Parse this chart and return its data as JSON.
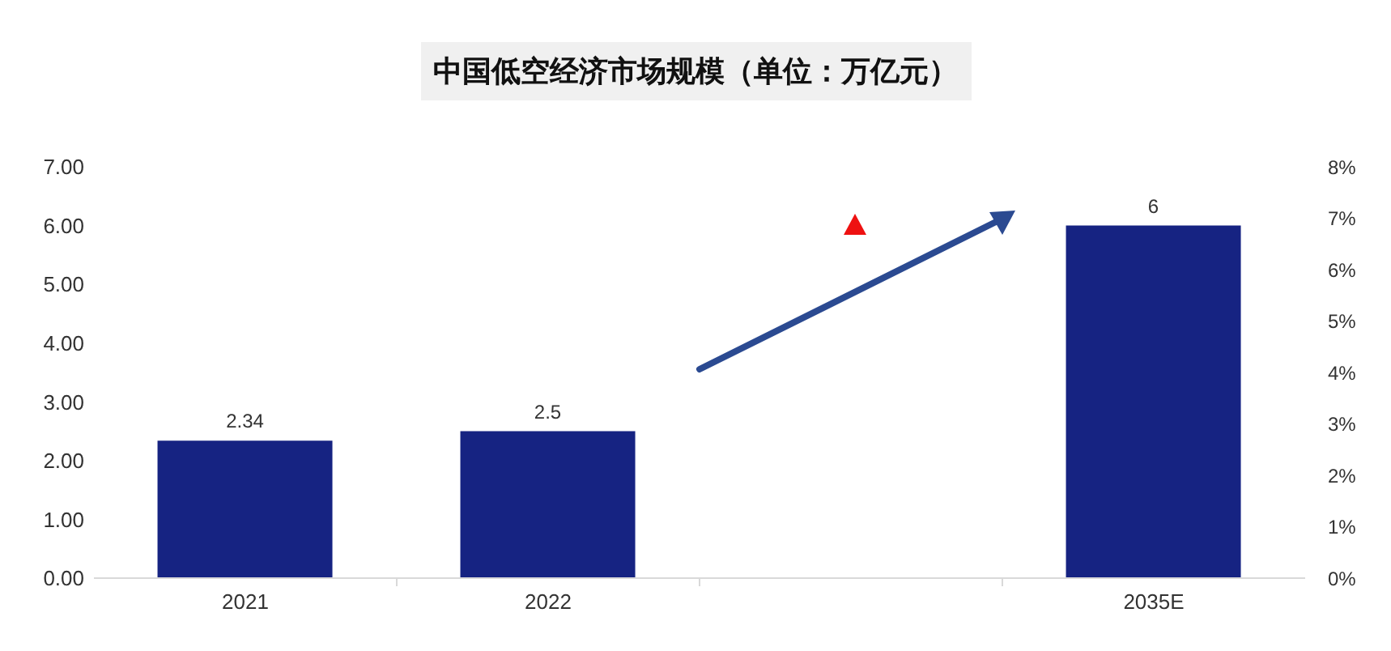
{
  "chart_data": {
    "type": "bar",
    "title": "中国低空经济市场规模（单位：万亿元）",
    "categories": [
      "2021",
      "2022",
      null,
      "2035E"
    ],
    "values": [
      2.34,
      2.5,
      null,
      6
    ],
    "color": "#162382",
    "ylim": [
      0,
      7
    ],
    "yticks": [
      {
        "value": 0,
        "label": "0.00"
      },
      {
        "value": 1,
        "label": "1.00"
      },
      {
        "value": 2,
        "label": "2.00"
      },
      {
        "value": 3,
        "label": "3.00"
      },
      {
        "value": 4,
        "label": "4.00"
      },
      {
        "value": 5,
        "label": "5.00"
      },
      {
        "value": 6,
        "label": "6.00"
      },
      {
        "value": 7,
        "label": "7.00"
      }
    ],
    "y2lim": [
      0,
      8
    ],
    "y2ticks": [
      {
        "value": 0,
        "label": "0%"
      },
      {
        "value": 1,
        "label": "1%"
      },
      {
        "value": 2,
        "label": "2%"
      },
      {
        "value": 3,
        "label": "3%"
      },
      {
        "value": 4,
        "label": "4%"
      },
      {
        "value": 5,
        "label": "5%"
      },
      {
        "value": 6,
        "label": "6%"
      },
      {
        "value": 7,
        "label": "7%"
      },
      {
        "value": 8,
        "label": "8%"
      }
    ],
    "data_labels": true
  }
}
